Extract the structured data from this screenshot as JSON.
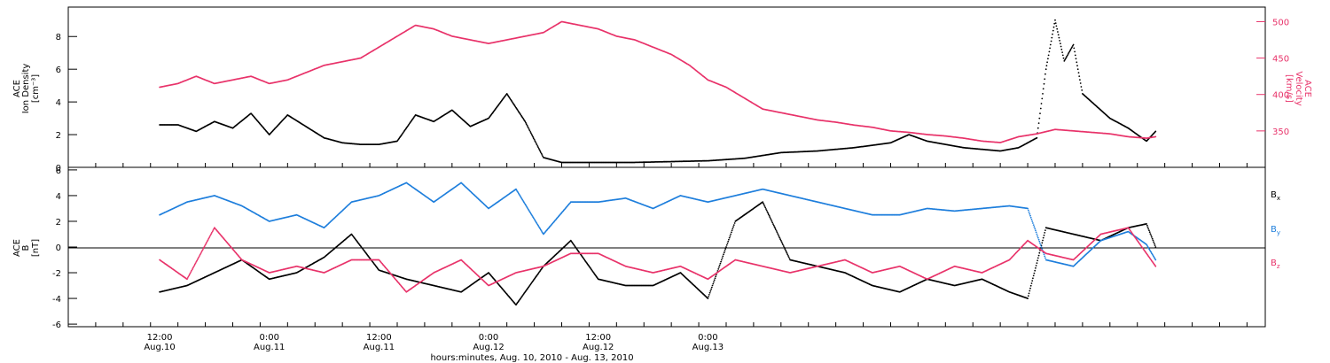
{
  "chart_data": [
    {
      "type": "scatter",
      "panel": "plasma",
      "ylabel_lines": [
        "ACE",
        "Ion Density",
        "[cm⁻³]"
      ],
      "ylabel2_lines": [
        "ACE",
        "Velocity",
        "[km/s]"
      ],
      "ylim": [
        0,
        9.8
      ],
      "ylim2": [
        300,
        520
      ],
      "yticks": [
        0,
        2,
        4,
        6,
        8
      ],
      "yticks2": [
        350,
        400,
        450,
        500
      ],
      "series": [
        {
          "name": "Ion Density",
          "axis": "left",
          "color": "#000000",
          "points": [
            [
              0,
              2.6
            ],
            [
              2,
              2.6
            ],
            [
              4,
              2.2
            ],
            [
              6,
              2.8
            ],
            [
              8,
              2.4
            ],
            [
              10,
              3.3
            ],
            [
              12,
              2.0
            ],
            [
              14,
              3.2
            ],
            [
              16,
              2.5
            ],
            [
              18,
              1.8
            ],
            [
              20,
              1.5
            ],
            [
              22,
              1.4
            ],
            [
              24,
              1.4
            ],
            [
              26,
              1.6
            ],
            [
              28,
              3.2
            ],
            [
              30,
              2.8
            ],
            [
              32,
              3.5
            ],
            [
              34,
              2.5
            ],
            [
              36,
              3.0
            ],
            [
              38,
              4.5
            ],
            [
              40,
              2.8
            ],
            [
              42,
              0.6
            ],
            [
              44,
              0.3
            ],
            [
              48,
              0.3
            ],
            [
              52,
              0.3
            ],
            [
              56,
              0.35
            ],
            [
              60,
              0.4
            ],
            [
              64,
              0.55
            ],
            [
              68,
              0.9
            ],
            [
              72,
              1.0
            ],
            [
              76,
              1.2
            ],
            [
              80,
              1.5
            ],
            [
              82,
              2.0
            ],
            [
              84,
              1.6
            ],
            [
              88,
              1.2
            ],
            [
              92,
              1.0
            ],
            [
              94,
              1.2
            ],
            [
              96,
              1.8
            ],
            [
              97,
              6.0
            ],
            [
              98,
              9.0
            ],
            [
              99,
              6.5
            ],
            [
              100,
              7.5
            ],
            [
              101,
              4.5
            ],
            [
              102,
              4.0
            ],
            [
              104,
              3.0
            ],
            [
              106,
              2.4
            ],
            [
              108,
              1.6
            ],
            [
              109,
              2.2
            ]
          ]
        },
        {
          "name": "Velocity",
          "axis": "right",
          "color": "#e8336a",
          "points": [
            [
              0,
              410
            ],
            [
              2,
              415
            ],
            [
              4,
              425
            ],
            [
              6,
              415
            ],
            [
              8,
              420
            ],
            [
              10,
              425
            ],
            [
              12,
              415
            ],
            [
              14,
              420
            ],
            [
              16,
              430
            ],
            [
              18,
              440
            ],
            [
              20,
              445
            ],
            [
              22,
              450
            ],
            [
              24,
              465
            ],
            [
              26,
              480
            ],
            [
              28,
              495
            ],
            [
              30,
              490
            ],
            [
              32,
              480
            ],
            [
              34,
              475
            ],
            [
              36,
              470
            ],
            [
              38,
              475
            ],
            [
              40,
              480
            ],
            [
              42,
              485
            ],
            [
              44,
              500
            ],
            [
              46,
              495
            ],
            [
              48,
              490
            ],
            [
              50,
              480
            ],
            [
              52,
              475
            ],
            [
              54,
              465
            ],
            [
              56,
              455
            ],
            [
              58,
              440
            ],
            [
              60,
              420
            ],
            [
              62,
              410
            ],
            [
              64,
              395
            ],
            [
              66,
              380
            ],
            [
              68,
              375
            ],
            [
              70,
              370
            ],
            [
              72,
              365
            ],
            [
              74,
              362
            ],
            [
              76,
              358
            ],
            [
              78,
              355
            ],
            [
              80,
              350
            ],
            [
              82,
              348
            ],
            [
              84,
              345
            ],
            [
              86,
              343
            ],
            [
              88,
              340
            ],
            [
              90,
              336
            ],
            [
              92,
              334
            ],
            [
              94,
              342
            ],
            [
              96,
              346
            ],
            [
              98,
              352
            ],
            [
              100,
              350
            ],
            [
              102,
              348
            ],
            [
              104,
              346
            ],
            [
              106,
              342
            ],
            [
              108,
              340
            ],
            [
              109,
              342
            ]
          ]
        }
      ]
    },
    {
      "type": "scatter",
      "panel": "magnetic",
      "ylabel_lines": [
        "ACE",
        "B",
        "[nT]"
      ],
      "ylim": [
        -6.2,
        6.2
      ],
      "yticks": [
        -6,
        -4,
        -2,
        0,
        2,
        4,
        6
      ],
      "legend": [
        "Bx",
        "By",
        "Bz"
      ],
      "series": [
        {
          "name": "Bx",
          "color": "#000000",
          "points": [
            [
              0,
              -3.5
            ],
            [
              3,
              -3.0
            ],
            [
              6,
              -2.0
            ],
            [
              9,
              -1.0
            ],
            [
              12,
              -2.5
            ],
            [
              15,
              -2.0
            ],
            [
              18,
              -0.8
            ],
            [
              21,
              1.0
            ],
            [
              24,
              -1.8
            ],
            [
              27,
              -2.5
            ],
            [
              30,
              -3.0
            ],
            [
              33,
              -3.5
            ],
            [
              36,
              -2.0
            ],
            [
              39,
              -4.5
            ],
            [
              42,
              -1.5
            ],
            [
              45,
              0.5
            ],
            [
              48,
              -2.5
            ],
            [
              51,
              -3.0
            ],
            [
              54,
              -3.0
            ],
            [
              57,
              -2.0
            ],
            [
              60,
              -4.0
            ],
            [
              63,
              2.0
            ],
            [
              66,
              3.5
            ],
            [
              69,
              -1.0
            ],
            [
              72,
              -1.5
            ],
            [
              75,
              -2.0
            ],
            [
              78,
              -3.0
            ],
            [
              81,
              -3.5
            ],
            [
              84,
              -2.5
            ],
            [
              87,
              -3.0
            ],
            [
              90,
              -2.5
            ],
            [
              93,
              -3.5
            ],
            [
              95,
              -4.0
            ],
            [
              97,
              1.5
            ],
            [
              100,
              1.0
            ],
            [
              103,
              0.5
            ],
            [
              106,
              1.5
            ],
            [
              108,
              1.8
            ],
            [
              109,
              0.0
            ]
          ]
        },
        {
          "name": "By",
          "color": "#1f7fdc",
          "points": [
            [
              0,
              2.5
            ],
            [
              3,
              3.5
            ],
            [
              6,
              4.0
            ],
            [
              9,
              3.2
            ],
            [
              12,
              2.0
            ],
            [
              15,
              2.5
            ],
            [
              18,
              1.5
            ],
            [
              21,
              3.5
            ],
            [
              24,
              4.0
            ],
            [
              27,
              5.0
            ],
            [
              30,
              3.5
            ],
            [
              33,
              5.0
            ],
            [
              36,
              3.0
            ],
            [
              39,
              4.5
            ],
            [
              42,
              1.0
            ],
            [
              45,
              3.5
            ],
            [
              48,
              3.5
            ],
            [
              51,
              3.8
            ],
            [
              54,
              3.0
            ],
            [
              57,
              4.0
            ],
            [
              60,
              3.5
            ],
            [
              63,
              4.0
            ],
            [
              66,
              4.5
            ],
            [
              69,
              4.0
            ],
            [
              72,
              3.5
            ],
            [
              75,
              3.0
            ],
            [
              78,
              2.5
            ],
            [
              81,
              2.5
            ],
            [
              84,
              3.0
            ],
            [
              87,
              2.8
            ],
            [
              90,
              3.0
            ],
            [
              93,
              3.2
            ],
            [
              95,
              3.0
            ],
            [
              97,
              -1.0
            ],
            [
              100,
              -1.5
            ],
            [
              103,
              0.5
            ],
            [
              106,
              1.2
            ],
            [
              108,
              0.2
            ],
            [
              109,
              -1.0
            ]
          ]
        },
        {
          "name": "Bz",
          "color": "#e8336a",
          "points": [
            [
              0,
              -1.0
            ],
            [
              3,
              -2.5
            ],
            [
              6,
              1.5
            ],
            [
              9,
              -1.0
            ],
            [
              12,
              -2.0
            ],
            [
              15,
              -1.5
            ],
            [
              18,
              -2.0
            ],
            [
              21,
              -1.0
            ],
            [
              24,
              -1.0
            ],
            [
              27,
              -3.5
            ],
            [
              30,
              -2.0
            ],
            [
              33,
              -1.0
            ],
            [
              36,
              -3.0
            ],
            [
              39,
              -2.0
            ],
            [
              42,
              -1.5
            ],
            [
              45,
              -0.5
            ],
            [
              48,
              -0.5
            ],
            [
              51,
              -1.5
            ],
            [
              54,
              -2.0
            ],
            [
              57,
              -1.5
            ],
            [
              60,
              -2.5
            ],
            [
              63,
              -1.0
            ],
            [
              66,
              -1.5
            ],
            [
              69,
              -2.0
            ],
            [
              72,
              -1.5
            ],
            [
              75,
              -1.0
            ],
            [
              78,
              -2.0
            ],
            [
              81,
              -1.5
            ],
            [
              84,
              -2.5
            ],
            [
              87,
              -1.5
            ],
            [
              90,
              -2.0
            ],
            [
              93,
              -1.0
            ],
            [
              95,
              0.5
            ],
            [
              97,
              -0.5
            ],
            [
              100,
              -1.0
            ],
            [
              103,
              1.0
            ],
            [
              106,
              1.5
            ],
            [
              108,
              -0.5
            ],
            [
              109,
              -1.5
            ]
          ]
        }
      ]
    }
  ],
  "xaxis": {
    "xlim": [
      -10,
      121
    ],
    "ticks": [
      {
        "x": 0,
        "line1": "12:00",
        "line2": "Aug.10"
      },
      {
        "x": 12,
        "line1": "0:00",
        "line2": "Aug.11"
      },
      {
        "x": 24,
        "line1": "12:00",
        "line2": "Aug.11"
      },
      {
        "x": 36,
        "line1": "0:00",
        "line2": "Aug.12"
      },
      {
        "x": 48,
        "line1": "12:00",
        "line2": "Aug.12"
      },
      {
        "x": 60,
        "line1": "0:00",
        "line2": "Aug.13"
      }
    ],
    "title": "hours:minutes, Aug. 10, 2010 - Aug. 13, 2010"
  },
  "legend_labels": {
    "bx": "B",
    "bx_sub": "x",
    "by": "B",
    "by_sub": "y",
    "bz": "B",
    "bz_sub": "z"
  }
}
